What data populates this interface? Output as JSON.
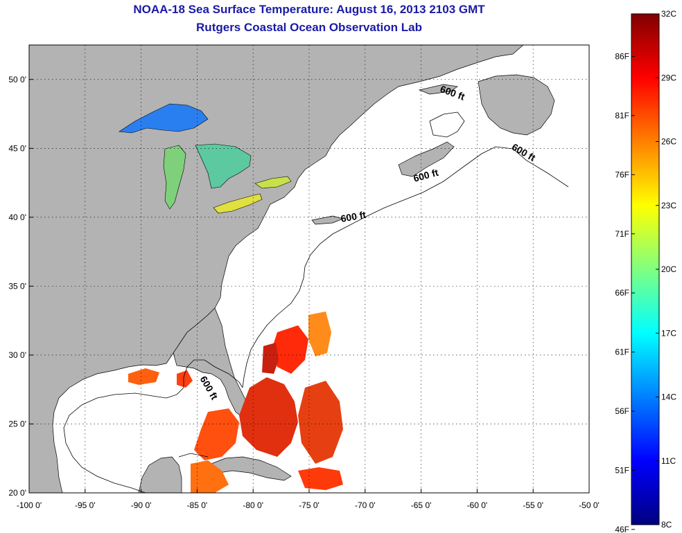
{
  "title": {
    "line1": "NOAA-18 Sea Surface Temperature:  August 16, 2013 2103 GMT",
    "line2": "Rutgers Coastal Ocean Observation Lab"
  },
  "map": {
    "lon_range": [
      -100,
      -50
    ],
    "lat_range": [
      20,
      52.5
    ],
    "x_ticks": [
      {
        "value": -100,
        "label": "-100 0'"
      },
      {
        "value": -95,
        "label": "-95 0'"
      },
      {
        "value": -90,
        "label": "-90 0'"
      },
      {
        "value": -85,
        "label": "-85 0'"
      },
      {
        "value": -80,
        "label": "-80 0'"
      },
      {
        "value": -75,
        "label": "-75 0'"
      },
      {
        "value": -70,
        "label": "-70 0'"
      },
      {
        "value": -65,
        "label": "-65 0'"
      },
      {
        "value": -60,
        "label": "-60 0'"
      },
      {
        "value": -55,
        "label": "-55 0'"
      },
      {
        "value": -50,
        "label": "-50 0'"
      }
    ],
    "y_ticks": [
      {
        "value": 50,
        "label": "50 0'"
      },
      {
        "value": 45,
        "label": "45 0'"
      },
      {
        "value": 40,
        "label": "40 0'"
      },
      {
        "value": 35,
        "label": "35 0'"
      },
      {
        "value": 30,
        "label": "30 0'"
      },
      {
        "value": 25,
        "label": "25 0'"
      },
      {
        "value": 20,
        "label": "20 0'"
      }
    ],
    "grid": true,
    "land_color": "#b3b3b3",
    "ocean_color": "#ffffff",
    "contour_labels": [
      {
        "text": "600 ft",
        "lon": -62.3,
        "lat": 48.8,
        "angle": 20
      },
      {
        "text": "600 ft",
        "lon": -56.0,
        "lat": 44.5,
        "angle": 30
      },
      {
        "text": "600 ft",
        "lon": -64.5,
        "lat": 42.8,
        "angle": -15
      },
      {
        "text": "600 ft",
        "lon": -71.0,
        "lat": 39.8,
        "angle": -10
      },
      {
        "text": "600 ft",
        "lon": -84.2,
        "lat": 27.5,
        "angle": 60
      }
    ]
  },
  "colorbar": {
    "colors": [
      "#000080",
      "#0000ff",
      "#0080ff",
      "#00ffff",
      "#80ff80",
      "#ffff00",
      "#ff8000",
      "#ff0000",
      "#800000"
    ],
    "celsius_ticks": [
      {
        "value": 32,
        "label": "32C"
      },
      {
        "value": 29,
        "label": "29C"
      },
      {
        "value": 26,
        "label": "26C"
      },
      {
        "value": 23,
        "label": "23C"
      },
      {
        "value": 20,
        "label": "20C"
      },
      {
        "value": 17,
        "label": "17C"
      },
      {
        "value": 14,
        "label": "14C"
      },
      {
        "value": 11,
        "label": "11C"
      },
      {
        "value": 8,
        "label": "8C"
      }
    ],
    "fahrenheit_ticks": [
      {
        "value": 86,
        "label": "86F"
      },
      {
        "value": 81,
        "label": "81F"
      },
      {
        "value": 76,
        "label": "76F"
      },
      {
        "value": 71,
        "label": "71F"
      },
      {
        "value": 66,
        "label": "66F"
      },
      {
        "value": 61,
        "label": "61F"
      },
      {
        "value": 56,
        "label": "56F"
      },
      {
        "value": 51,
        "label": "51F"
      },
      {
        "value": 46,
        "label": "46F"
      }
    ],
    "c_range": [
      8,
      32
    ],
    "f_range": [
      46.4,
      89.6
    ]
  }
}
